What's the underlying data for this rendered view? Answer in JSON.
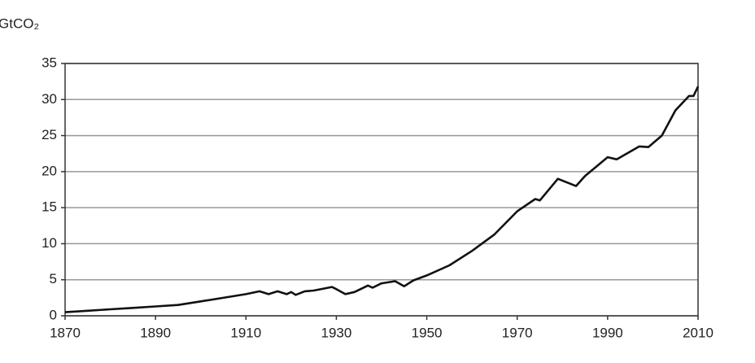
{
  "chart_data": {
    "type": "line",
    "y_label": "GtCO₂",
    "x": [
      1870,
      1875,
      1880,
      1885,
      1890,
      1895,
      1900,
      1905,
      1910,
      1913,
      1915,
      1917,
      1919,
      1920,
      1921,
      1923,
      1925,
      1929,
      1930,
      1932,
      1934,
      1937,
      1938,
      1940,
      1943,
      1945,
      1947,
      1950,
      1955,
      1960,
      1965,
      1970,
      1974,
      1975,
      1979,
      1983,
      1985,
      1990,
      1992,
      1997,
      1999,
      2002,
      2005,
      2008,
      2009,
      2010
    ],
    "values": [
      0.5,
      0.7,
      0.9,
      1.1,
      1.3,
      1.5,
      2.0,
      2.5,
      3.0,
      3.4,
      3.0,
      3.4,
      3.0,
      3.3,
      2.9,
      3.4,
      3.5,
      4.0,
      3.7,
      3.0,
      3.3,
      4.2,
      3.9,
      4.5,
      4.8,
      4.1,
      4.9,
      5.6,
      7.0,
      9.0,
      11.3,
      14.5,
      16.2,
      16.0,
      19.0,
      18.0,
      19.4,
      22.0,
      21.7,
      23.5,
      23.4,
      25.0,
      28.5,
      30.5,
      30.5,
      31.8
    ],
    "color": "#111111",
    "xlim": [
      1870,
      2010
    ],
    "xticks": [
      1870,
      1890,
      1910,
      1930,
      1950,
      1970,
      1990,
      2010
    ],
    "ylim": [
      0,
      35
    ],
    "yticks": [
      0,
      5,
      10,
      15,
      20,
      25,
      30,
      35
    ],
    "grid": true
  }
}
